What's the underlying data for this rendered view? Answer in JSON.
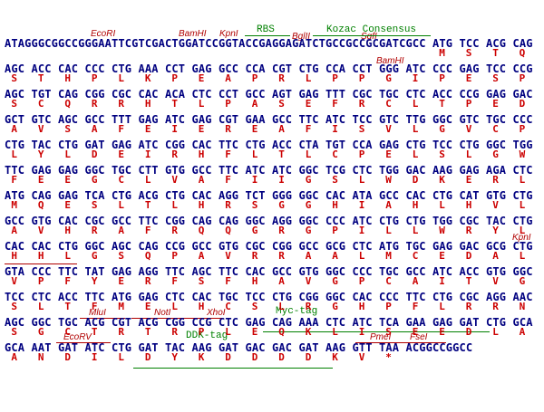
{
  "rows": [
    {
      "seq": "ATAGGGCGGCCGGGAATTCGTCGACTGGATCCGGTACCGAGGAGATCTGCCGCCGCGATCGCC ATG TCC ACG CAG",
      "protein": "                                                                 M   S   T   Q"
    },
    {
      "seq": "AGC ACC CAC CCC CTG AAA CCT GAG GCC CCA CGT CTG CCA CCT GGG ATC CCC GAG TCC CCG",
      "protein": " S   T   H   P   L   K   P   E   A   P   R   L   P   P   G   I   P   E   S   P"
    },
    {
      "seq": "AGC TGT CAG CGG CGC CAC ACA CTC CCT GCC AGT GAG TTT CGC TGC CTC ACC CCG GAG GAC",
      "protein": " S   C   Q   R   R   H   T   L   P   A   S   E   F   R   C   L   T   P   E   D"
    },
    {
      "seq": "GCT GTC AGC GCC TTT GAG ATC GAG CGT GAA GCC TTC ATC TCC GTC TTG GGC GTC TGC CCC",
      "protein": " A   V   S   A   F   E   I   E   R   E   A   F   I   S   V   L   G   V   C   P"
    },
    {
      "seq": "CTG TAC CTG GAT GAG ATC CGG CAC TTC CTG ACC CTA TGT CCA GAG CTG TCC CTG GGC TGG",
      "protein": " L   Y   L   D   E   I   R   H   F   L   T   L   C   P   E   L   S   L   G   W"
    },
    {
      "seq": "TTC GAG GAG GGC TGC CTT GTG GCC TTC ATC ATC GGC TCG CTC TGG GAC AAG GAG AGA CTC",
      "protein": " F   E   E   G   C   L   V   A   F   I   I   G   S   L   W   D   K   E   R   L"
    },
    {
      "seq": "ATG CAG GAG TCA CTG ACG CTG CAC AGG TCT GGG GGC CAC ATA GCC CAC CTG CAT GTG CTG",
      "protein": " M   Q   E   S   L   T   L   H   R   S   G   G   H   I   A   H   L   H   V   L"
    },
    {
      "seq": "GCC GTG CAC CGC GCC TTC CGG CAG CAG GGC AGG GGC CCC ATC CTG CTG TGG CGC TAC CTG",
      "protein": " A   V   H   R   A   F   R   Q   Q   G   R   G   P   I   L   L   W   R   Y   L"
    },
    {
      "seq": "CAC CAC CTG GGC AGC CAG CCG GCC GTG CGC CGG GCC GCG CTC ATG TGC GAG GAC GCG CTG",
      "protein": " H   H   L   G   S   Q   P   A   V   R   R   A   A   L   M   C   E   D   A   L"
    },
    {
      "seq": "GTA CCC TTC TAT GAG AGG TTC AGC TTC CAC GCC GTG GGC CCC TGC GCC ATC ACC GTG GGC",
      "protein": " V   P   F   Y   E   R   F   S   F   H   A   V   G   P   C   A   I   T   V   G"
    },
    {
      "seq": "TCC CTC ACC TTC ATG GAG CTC CAC TGC TCC CTG CGG GGC CAC CCC TTC CTG CGC AGG AAC",
      "protein": " S   L   T   F   M   E   L   H   C   S   L   R   G   H   P   F   L   R   R   N"
    },
    {
      "seq": "AGC GGC TGC ACG CGT ACG CGG CCG CTC GAG CAG AAA CTC ATC TCA GAA GAG GAT CTG GCA",
      "protein": " S   G   C   T   R   T   R   P   L   E   Q   K   L   I   S   E   E   D   L   A"
    },
    {
      "seq": "GCA AAT GAT ATC CTG GAT TAC AAG GAT GAC GAC GAT AAG GTT TAA ACGGCCGGCC",
      "protein": " A   N   D   I   L   D   Y   K   D   D   D   D   K   V   *"
    }
  ],
  "annotations": [
    "EcoRI",
    "BamHI",
    "KpnI",
    "RBS",
    "BglII",
    "Kozac Consensus",
    "SgfI",
    "BamHI",
    "KpnI",
    "MluI",
    "NotI",
    "XhoI",
    "Myc-tag",
    "EcoRV",
    "DDK-tag",
    "PmeI",
    "FseI"
  ]
}
